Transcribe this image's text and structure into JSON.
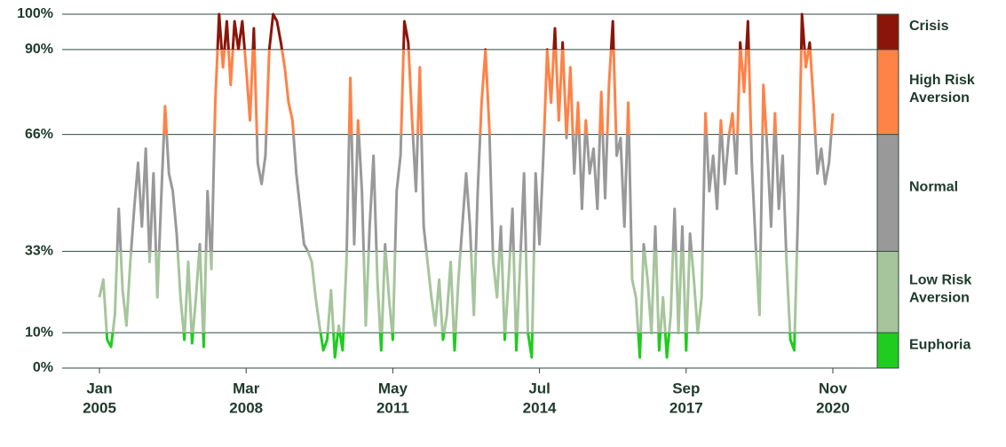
{
  "chart_data": {
    "type": "line",
    "x": [
      "2005-01",
      "2005-02",
      "2005-03",
      "2005-04",
      "2005-05",
      "2005-06",
      "2005-07",
      "2005-08",
      "2005-09",
      "2005-10",
      "2005-11",
      "2005-12",
      "2006-01",
      "2006-02",
      "2006-03",
      "2006-04",
      "2006-05",
      "2006-06",
      "2006-07",
      "2006-08",
      "2006-09",
      "2006-10",
      "2006-11",
      "2006-12",
      "2007-01",
      "2007-02",
      "2007-03",
      "2007-04",
      "2007-05",
      "2007-06",
      "2007-07",
      "2007-08",
      "2007-09",
      "2007-10",
      "2007-11",
      "2007-12",
      "2008-01",
      "2008-02",
      "2008-03",
      "2008-04",
      "2008-05",
      "2008-06",
      "2008-07",
      "2008-08",
      "2008-09",
      "2008-10",
      "2008-11",
      "2008-12",
      "2009-01",
      "2009-02",
      "2009-03",
      "2009-04",
      "2009-05",
      "2009-06",
      "2009-07",
      "2009-08",
      "2009-09",
      "2009-10",
      "2009-11",
      "2009-12",
      "2010-01",
      "2010-02",
      "2010-03",
      "2010-04",
      "2010-05",
      "2010-06",
      "2010-07",
      "2010-08",
      "2010-09",
      "2010-10",
      "2010-11",
      "2010-12",
      "2011-01",
      "2011-02",
      "2011-03",
      "2011-04",
      "2011-05",
      "2011-06",
      "2011-07",
      "2011-08",
      "2011-09",
      "2011-10",
      "2011-11",
      "2011-12",
      "2012-01",
      "2012-02",
      "2012-03",
      "2012-04",
      "2012-05",
      "2012-06",
      "2012-07",
      "2012-08",
      "2012-09",
      "2012-10",
      "2012-11",
      "2012-12",
      "2013-01",
      "2013-02",
      "2013-03",
      "2013-04",
      "2013-05",
      "2013-06",
      "2013-07",
      "2013-08",
      "2013-09",
      "2013-10",
      "2013-11",
      "2013-12",
      "2014-01",
      "2014-02",
      "2014-03",
      "2014-04",
      "2014-05",
      "2014-06",
      "2014-07",
      "2014-08",
      "2014-09",
      "2014-10",
      "2014-11",
      "2014-12",
      "2015-01",
      "2015-02",
      "2015-03",
      "2015-04",
      "2015-05",
      "2015-06",
      "2015-07",
      "2015-08",
      "2015-09",
      "2015-10",
      "2015-11",
      "2015-12",
      "2016-01",
      "2016-02",
      "2016-03",
      "2016-04",
      "2016-05",
      "2016-06",
      "2016-07",
      "2016-08",
      "2016-09",
      "2016-10",
      "2016-11",
      "2016-12",
      "2017-01",
      "2017-02",
      "2017-03",
      "2017-04",
      "2017-05",
      "2017-06",
      "2017-07",
      "2017-08",
      "2017-09",
      "2017-10",
      "2017-11",
      "2017-12",
      "2018-01",
      "2018-02",
      "2018-03",
      "2018-04",
      "2018-05",
      "2018-06",
      "2018-07",
      "2018-08",
      "2018-09",
      "2018-10",
      "2018-11",
      "2018-12",
      "2019-01",
      "2019-02",
      "2019-03",
      "2019-04",
      "2019-05",
      "2019-06",
      "2019-07",
      "2019-08",
      "2019-09",
      "2019-10",
      "2019-11",
      "2019-12",
      "2020-01",
      "2020-02",
      "2020-03",
      "2020-04",
      "2020-05",
      "2020-06",
      "2020-07",
      "2020-08",
      "2020-09",
      "2020-10",
      "2020-11"
    ],
    "values": [
      20,
      25,
      8,
      6,
      15,
      45,
      22,
      12,
      30,
      45,
      58,
      40,
      62,
      30,
      55,
      20,
      48,
      74,
      55,
      50,
      38,
      20,
      8,
      30,
      7,
      20,
      35,
      6,
      50,
      28,
      75,
      100,
      85,
      98,
      80,
      98,
      90,
      98,
      85,
      70,
      96,
      58,
      52,
      60,
      90,
      100,
      98,
      92,
      85,
      75,
      70,
      55,
      45,
      35,
      33,
      30,
      20,
      12,
      5,
      8,
      22,
      3,
      12,
      5,
      30,
      82,
      35,
      70,
      50,
      12,
      40,
      60,
      25,
      5,
      35,
      20,
      8,
      50,
      60,
      98,
      92,
      70,
      50,
      85,
      40,
      30,
      20,
      12,
      25,
      8,
      15,
      30,
      5,
      25,
      40,
      55,
      40,
      15,
      50,
      75,
      90,
      68,
      30,
      20,
      40,
      8,
      25,
      45,
      5,
      30,
      55,
      10,
      3,
      55,
      35,
      60,
      90,
      75,
      96,
      70,
      92,
      65,
      85,
      55,
      75,
      45,
      70,
      55,
      62,
      45,
      78,
      48,
      80,
      98,
      60,
      65,
      40,
      75,
      25,
      20,
      3,
      35,
      25,
      10,
      40,
      5,
      20,
      3,
      15,
      45,
      10,
      40,
      5,
      38,
      25,
      10,
      20,
      72,
      50,
      60,
      45,
      70,
      52,
      65,
      72,
      55,
      92,
      78,
      98,
      58,
      35,
      15,
      80,
      62,
      40,
      72,
      45,
      60,
      30,
      8,
      5,
      45,
      100,
      85,
      92,
      75,
      55,
      62,
      52,
      58,
      72
    ],
    "xlim": [
      "2005-01",
      "2020-11"
    ],
    "xticks": [
      {
        "value": "2005-01",
        "label": [
          "Jan",
          "2005"
        ]
      },
      {
        "value": "2008-03",
        "label": [
          "Mar",
          "2008"
        ]
      },
      {
        "value": "2011-05",
        "label": [
          "May",
          "2011"
        ]
      },
      {
        "value": "2014-07",
        "label": [
          "Jul",
          "2014"
        ]
      },
      {
        "value": "2017-09",
        "label": [
          "Sep",
          "2017"
        ]
      },
      {
        "value": "2020-11",
        "label": [
          "Nov",
          "2020"
        ]
      }
    ],
    "ylim": [
      0,
      100
    ],
    "yticks": [
      {
        "value": 0,
        "label": "0%"
      },
      {
        "value": 10,
        "label": "10%"
      },
      {
        "value": 33,
        "label": "33%"
      },
      {
        "value": 66,
        "label": "66%"
      },
      {
        "value": 90,
        "label": "90%"
      },
      {
        "value": 100,
        "label": "100%"
      }
    ],
    "grid": true,
    "bands": [
      {
        "label": [
          "Crisis"
        ],
        "from": 90,
        "to": 100,
        "color": "#8b1508"
      },
      {
        "label": [
          "High Risk",
          "Aversion"
        ],
        "from": 66,
        "to": 90,
        "color": "#ff8247"
      },
      {
        "label": [
          "Normal"
        ],
        "from": 33,
        "to": 66,
        "color": "#999999"
      },
      {
        "label": [
          "Low Risk",
          "Aversion"
        ],
        "from": 10,
        "to": 33,
        "color": "#a6c59c"
      },
      {
        "label": [
          "Euphoria"
        ],
        "from": 0,
        "to": 10,
        "color": "#1fcc1f"
      }
    ]
  }
}
